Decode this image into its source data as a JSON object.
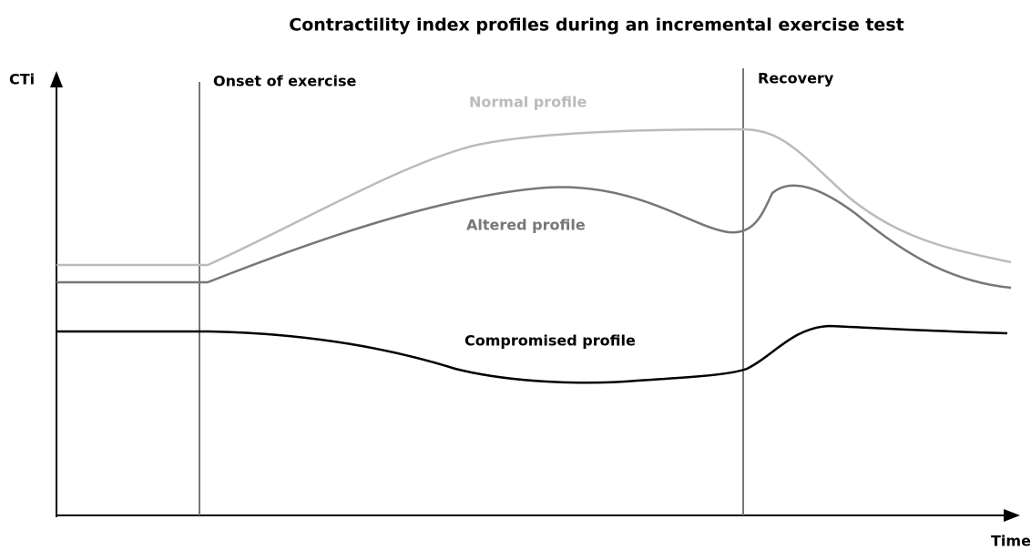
{
  "title": "Contractility index profiles during an incremental exercise test",
  "axes": {
    "y_label": "CTi",
    "x_label": "Time"
  },
  "phases": [
    {
      "label": "Onset of exercise"
    },
    {
      "label": "Recovery"
    }
  ],
  "profiles": [
    {
      "label": "Normal profile"
    },
    {
      "label": "Altered profile"
    },
    {
      "label": "Compromised profile"
    }
  ]
}
